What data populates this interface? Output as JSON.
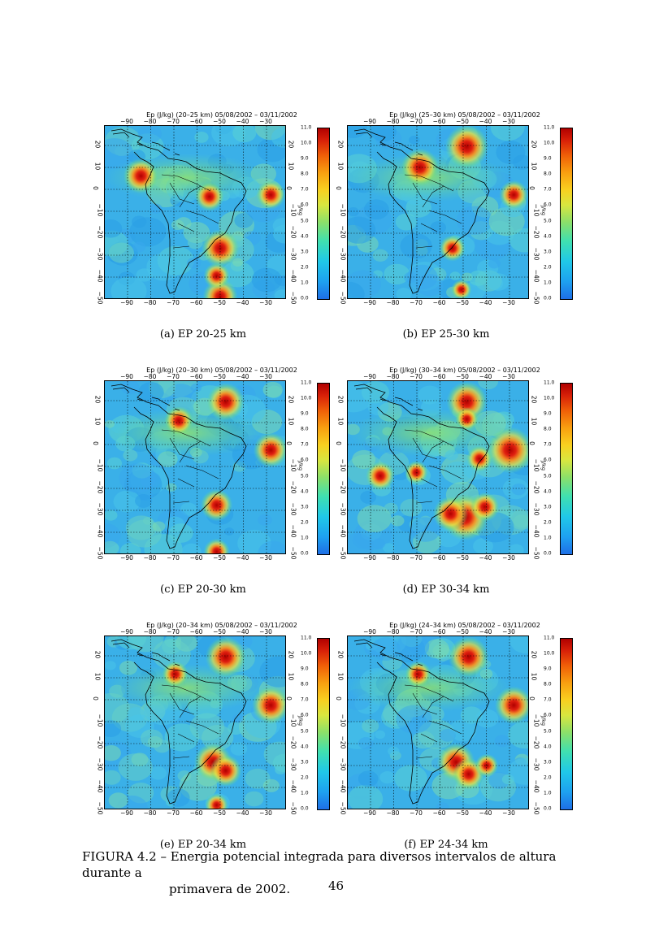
{
  "panels": [
    {
      "title": "Ep (J/kg) (20–25 km)   05/08/2002 – 03/11/2002",
      "caption": "(a) EP 20-25 km"
    },
    {
      "title": "Ep (J/kg) (25–30 km)   05/08/2002 – 03/11/2002",
      "caption": "(b) EP 25-30 km"
    },
    {
      "title": "Ep (J/kg) (20–30 km)   05/08/2002 – 03/11/2002",
      "caption": "(c) EP 20-30 km"
    },
    {
      "title": "Ep (J/kg) (30–34 km)   05/08/2002 – 03/11/2002",
      "caption": "(d) EP 30-34 km"
    },
    {
      "title": "Ep (J/kg) (20–34 km)   05/08/2002 – 03/11/2002",
      "caption": "(e) EP 20-34 km"
    },
    {
      "title": "Ep (J/kg) (24–34 km)   05/08/2002 – 03/11/2002",
      "caption": "(f) EP 24-34 km"
    }
  ],
  "lon_ticks": [
    "−90",
    "−80",
    "−70",
    "−60",
    "−50",
    "−40",
    "−30"
  ],
  "lat_ticks": [
    "20",
    "10",
    "0",
    "−10",
    "−20",
    "−30",
    "−40",
    "−50"
  ],
  "colorbar_ticks": [
    "11.0",
    "10.0",
    "9.0",
    "8.0",
    "7.0",
    "6.0",
    "5.0",
    "4.0",
    "3.0",
    "2.0",
    "1.0",
    "0.0"
  ],
  "colorbar_unit": "J/kg",
  "colorbar_colors": {
    "min": "#1e6fe6",
    "mid": "#d8e640",
    "max": "#b00000"
  },
  "figure_caption_line1": "FIGURA 4.2 – Energia potencial integrada para diversos intervalos de altura durante a",
  "figure_caption_line2": "primavera de 2002.",
  "page_number": "46"
}
